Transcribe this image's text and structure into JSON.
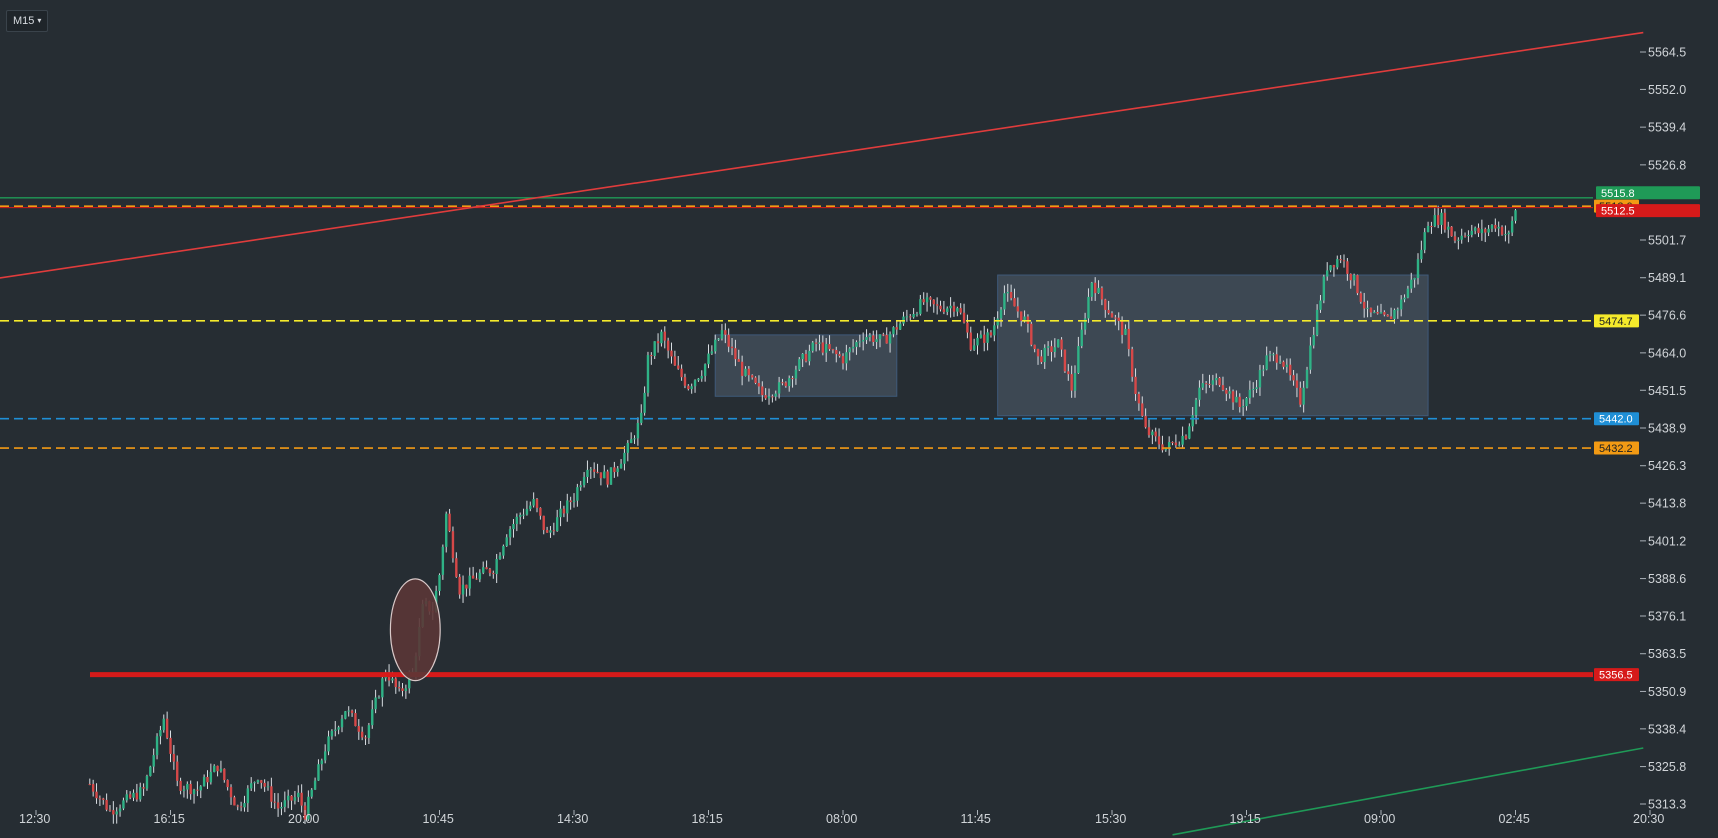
{
  "toolbar": {
    "timeframe": "M15",
    "caret": "▾"
  },
  "chart_data": {
    "type": "candlestick",
    "timeframe": "M15",
    "y_range": [
      5305,
      5575
    ],
    "y_ticks": [
      5564.5,
      5552.0,
      5539.4,
      5526.8,
      5501.7,
      5489.1,
      5476.6,
      5464.0,
      5451.5,
      5438.9,
      5426.3,
      5413.8,
      5401.2,
      5388.6,
      5376.1,
      5363.5,
      5350.9,
      5338.4,
      5325.8,
      5313.3
    ],
    "y_tick_labels": [
      "5564.5",
      "5552.0",
      "5539.4",
      "5526.8",
      "5501.7",
      "5489.1",
      "5476.6",
      "5464.0",
      "5451.5",
      "5438.9",
      "5426.3",
      "5413.8",
      "5401.2",
      "5388.6",
      "5376.1",
      "5363.5",
      "5350.9",
      "5338.4",
      "5325.8",
      "5313.3"
    ],
    "x_ticks": [
      0,
      10,
      20,
      30,
      40,
      50,
      60,
      70,
      80,
      90,
      100,
      110,
      120
    ],
    "x_tick_labels": [
      "12:30",
      "16:15",
      "20:00",
      "10:45",
      "14:30",
      "18:15",
      "08:00",
      "11:45",
      "15:30",
      "19:15",
      "09:00",
      "02:45",
      "20:30"
    ],
    "price_path": [
      [
        4,
        5320
      ],
      [
        5.5,
        5311
      ],
      [
        8,
        5318
      ],
      [
        9.5,
        5342
      ],
      [
        10.5,
        5320
      ],
      [
        12,
        5318
      ],
      [
        13.5,
        5326
      ],
      [
        15,
        5312
      ],
      [
        16.5,
        5323
      ],
      [
        18,
        5312
      ],
      [
        19.5,
        5316
      ],
      [
        20,
        5310
      ],
      [
        21.5,
        5332
      ],
      [
        23,
        5345
      ],
      [
        24.5,
        5336
      ],
      [
        26,
        5358
      ],
      [
        27,
        5350
      ],
      [
        28,
        5357
      ],
      [
        28.8,
        5380
      ],
      [
        29.5,
        5378
      ],
      [
        30,
        5390
      ],
      [
        30.5,
        5410
      ],
      [
        31.5,
        5385
      ],
      [
        33,
        5390
      ],
      [
        34,
        5392
      ],
      [
        35,
        5404
      ],
      [
        36,
        5410
      ],
      [
        37,
        5414
      ],
      [
        38,
        5403
      ],
      [
        39,
        5410
      ],
      [
        40,
        5416
      ],
      [
        41,
        5427
      ],
      [
        42.5,
        5422
      ],
      [
        44,
        5432
      ],
      [
        45,
        5442
      ],
      [
        45.5,
        5462
      ],
      [
        46.5,
        5470
      ],
      [
        47.5,
        5459
      ],
      [
        48.5,
        5453
      ],
      [
        49.5,
        5458
      ],
      [
        51,
        5471
      ],
      [
        52.5,
        5458
      ],
      [
        54,
        5450
      ],
      [
        55.5,
        5453
      ],
      [
        56.5,
        5459
      ],
      [
        58,
        5467
      ],
      [
        60,
        5462
      ],
      [
        61.5,
        5470
      ],
      [
        63,
        5468
      ],
      [
        64.5,
        5475
      ],
      [
        66,
        5481
      ],
      [
        67,
        5479
      ],
      [
        68.5,
        5480
      ],
      [
        69.5,
        5467
      ],
      [
        71,
        5470
      ],
      [
        72,
        5484
      ],
      [
        73.5,
        5475
      ],
      [
        74.5,
        5462
      ],
      [
        76,
        5467
      ],
      [
        77,
        5452
      ],
      [
        78,
        5477
      ],
      [
        78.5,
        5488
      ],
      [
        79.5,
        5480
      ],
      [
        81,
        5470
      ],
      [
        81.8,
        5450
      ],
      [
        82.5,
        5438
      ],
      [
        84,
        5432
      ],
      [
        85.5,
        5437
      ],
      [
        86.5,
        5452
      ],
      [
        88,
        5455
      ],
      [
        89.5,
        5446
      ],
      [
        90.5,
        5452
      ],
      [
        91.5,
        5462
      ],
      [
        92.5,
        5463
      ],
      [
        94,
        5448
      ],
      [
        95,
        5472
      ],
      [
        96,
        5493
      ],
      [
        97,
        5496
      ],
      [
        98,
        5488
      ],
      [
        99,
        5477
      ],
      [
        100.5,
        5475
      ],
      [
        101.5,
        5481
      ],
      [
        102.5,
        5490
      ],
      [
        103.5,
        5508
      ],
      [
        104.5,
        5509
      ],
      [
        105.5,
        5502
      ],
      [
        106.5,
        5505
      ],
      [
        107.5,
        5504
      ],
      [
        108.5,
        5507
      ],
      [
        109.5,
        5503
      ],
      [
        110,
        5512
      ]
    ],
    "horizontal_levels": [
      {
        "price": 5515.8,
        "color": "#1f9a57",
        "style": "solid",
        "label": "5515.8"
      },
      {
        "price": 5513.0,
        "color": "#f29a14",
        "style": "dashed",
        "label": "5513.0"
      },
      {
        "price": 5512.5,
        "color": "#d61a1a",
        "style": "solid-thin",
        "label": "5512.5"
      },
      {
        "price": 5474.7,
        "color": "#f5ea2b",
        "style": "dashed",
        "label": "5474.7"
      },
      {
        "price": 5442.0,
        "color": "#1f8fd6",
        "style": "dashed",
        "label": "5442.0"
      },
      {
        "price": 5432.2,
        "color": "#f29a14",
        "style": "dashed",
        "label": "5432.2"
      },
      {
        "price": 5356.5,
        "color": "#d61a1a",
        "style": "thick",
        "label": "5356.5"
      }
    ],
    "trend_lines": [
      {
        "from": [
          -2.7,
          5489
        ],
        "to": [
          119.5,
          5571
        ],
        "color": "#e03c3c"
      },
      {
        "from": [
          84.5,
          5303
        ],
        "to": [
          119.5,
          5332
        ],
        "color": "#1f9a57"
      }
    ],
    "zones": [
      {
        "x": [
          50.5,
          64
        ],
        "y": [
          5449.5,
          5470
        ],
        "color": "#5e6e80"
      },
      {
        "x": [
          71.5,
          103.5
        ],
        "y": [
          5443,
          5490
        ],
        "color": "#5e6e80"
      }
    ],
    "ellipse": {
      "center": [
        28.2,
        5371.5
      ],
      "rx_bars": 1.85,
      "ry_price": 17,
      "fill": "#5b3636",
      "stroke": "#d9c9c9"
    },
    "bull_color": "#2fb286",
    "bear_color": "#d64848",
    "wick_color": "#d8dde2",
    "background": "#262d33"
  }
}
